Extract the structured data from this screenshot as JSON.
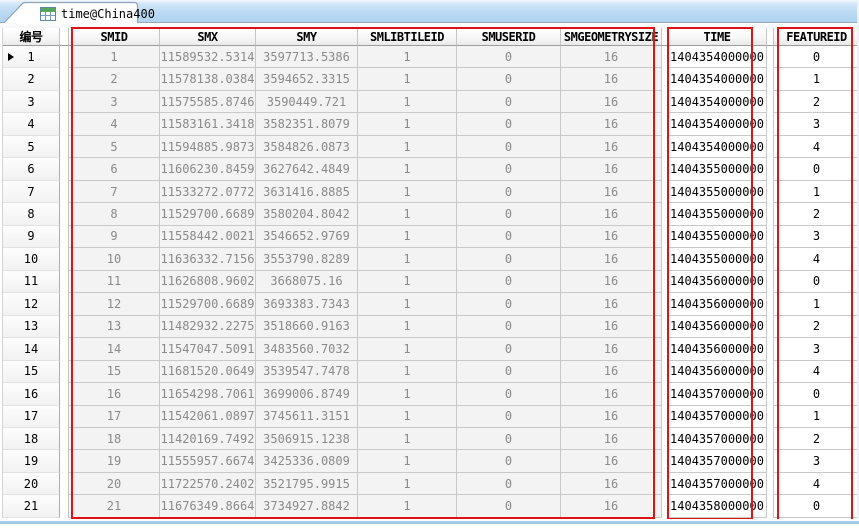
{
  "tab": {
    "title": "time@China400",
    "icon": "table-icon"
  },
  "grid": {
    "row_header_label": "编号",
    "columns": [
      {
        "key": "smid",
        "label": "SMID"
      },
      {
        "key": "smx",
        "label": "SMX"
      },
      {
        "key": "smy",
        "label": "SMY"
      },
      {
        "key": "smlibtileid",
        "label": "SMLIBTILEID"
      },
      {
        "key": "smuserid",
        "label": "SMUSERID"
      },
      {
        "key": "smgeometrysize",
        "label": "SMGEOMETRYSIZE"
      },
      {
        "key": "time",
        "label": "TIME"
      },
      {
        "key": "featureid",
        "label": "FEATUREID"
      }
    ],
    "selected_row": 1,
    "rows": [
      {
        "num": "1",
        "smid": "1",
        "smx": "11589532.5314",
        "smy": "3597713.5386",
        "smlibtileid": "1",
        "smuserid": "0",
        "smgeometrysize": "16",
        "time": "1404354000000",
        "featureid": "0"
      },
      {
        "num": "2",
        "smid": "2",
        "smx": "11578138.0384",
        "smy": "3594652.3315",
        "smlibtileid": "1",
        "smuserid": "0",
        "smgeometrysize": "16",
        "time": "1404354000000",
        "featureid": "1"
      },
      {
        "num": "3",
        "smid": "3",
        "smx": "11575585.8746",
        "smy": "3590449.721",
        "smlibtileid": "1",
        "smuserid": "0",
        "smgeometrysize": "16",
        "time": "1404354000000",
        "featureid": "2"
      },
      {
        "num": "4",
        "smid": "4",
        "smx": "11583161.3418",
        "smy": "3582351.8079",
        "smlibtileid": "1",
        "smuserid": "0",
        "smgeometrysize": "16",
        "time": "1404354000000",
        "featureid": "3"
      },
      {
        "num": "5",
        "smid": "5",
        "smx": "11594885.9873",
        "smy": "3584826.0873",
        "smlibtileid": "1",
        "smuserid": "0",
        "smgeometrysize": "16",
        "time": "1404354000000",
        "featureid": "4"
      },
      {
        "num": "6",
        "smid": "6",
        "smx": "11606230.8459",
        "smy": "3627642.4849",
        "smlibtileid": "1",
        "smuserid": "0",
        "smgeometrysize": "16",
        "time": "1404355000000",
        "featureid": "0"
      },
      {
        "num": "7",
        "smid": "7",
        "smx": "11533272.0772",
        "smy": "3631416.8885",
        "smlibtileid": "1",
        "smuserid": "0",
        "smgeometrysize": "16",
        "time": "1404355000000",
        "featureid": "1"
      },
      {
        "num": "8",
        "smid": "8",
        "smx": "11529700.6689",
        "smy": "3580204.8042",
        "smlibtileid": "1",
        "smuserid": "0",
        "smgeometrysize": "16",
        "time": "1404355000000",
        "featureid": "2"
      },
      {
        "num": "9",
        "smid": "9",
        "smx": "11558442.0021",
        "smy": "3546652.9769",
        "smlibtileid": "1",
        "smuserid": "0",
        "smgeometrysize": "16",
        "time": "1404355000000",
        "featureid": "3"
      },
      {
        "num": "10",
        "smid": "10",
        "smx": "11636332.7156",
        "smy": "3553790.8289",
        "smlibtileid": "1",
        "smuserid": "0",
        "smgeometrysize": "16",
        "time": "1404355000000",
        "featureid": "4"
      },
      {
        "num": "11",
        "smid": "11",
        "smx": "11626808.9602",
        "smy": "3668075.16",
        "smlibtileid": "1",
        "smuserid": "0",
        "smgeometrysize": "16",
        "time": "1404356000000",
        "featureid": "0"
      },
      {
        "num": "12",
        "smid": "12",
        "smx": "11529700.6689",
        "smy": "3693383.7343",
        "smlibtileid": "1",
        "smuserid": "0",
        "smgeometrysize": "16",
        "time": "1404356000000",
        "featureid": "1"
      },
      {
        "num": "13",
        "smid": "13",
        "smx": "11482932.2275",
        "smy": "3518660.9163",
        "smlibtileid": "1",
        "smuserid": "0",
        "smgeometrysize": "16",
        "time": "1404356000000",
        "featureid": "2"
      },
      {
        "num": "14",
        "smid": "14",
        "smx": "11547047.5091",
        "smy": "3483560.7032",
        "smlibtileid": "1",
        "smuserid": "0",
        "smgeometrysize": "16",
        "time": "1404356000000",
        "featureid": "3"
      },
      {
        "num": "15",
        "smid": "15",
        "smx": "11681520.0649",
        "smy": "3539547.7478",
        "smlibtileid": "1",
        "smuserid": "0",
        "smgeometrysize": "16",
        "time": "1404356000000",
        "featureid": "4"
      },
      {
        "num": "16",
        "smid": "16",
        "smx": "11654298.7061",
        "smy": "3699006.8749",
        "smlibtileid": "1",
        "smuserid": "0",
        "smgeometrysize": "16",
        "time": "1404357000000",
        "featureid": "0"
      },
      {
        "num": "17",
        "smid": "17",
        "smx": "11542061.0897",
        "smy": "3745611.3151",
        "smlibtileid": "1",
        "smuserid": "0",
        "smgeometrysize": "16",
        "time": "1404357000000",
        "featureid": "1"
      },
      {
        "num": "18",
        "smid": "18",
        "smx": "11420169.7492",
        "smy": "3506915.1238",
        "smlibtileid": "1",
        "smuserid": "0",
        "smgeometrysize": "16",
        "time": "1404357000000",
        "featureid": "2"
      },
      {
        "num": "19",
        "smid": "19",
        "smx": "11555957.6674",
        "smy": "3425336.0809",
        "smlibtileid": "1",
        "smuserid": "0",
        "smgeometrysize": "16",
        "time": "1404357000000",
        "featureid": "3"
      },
      {
        "num": "20",
        "smid": "20",
        "smx": "11722570.2402",
        "smy": "3521795.9915",
        "smlibtileid": "1",
        "smuserid": "0",
        "smgeometrysize": "16",
        "time": "1404357000000",
        "featureid": "4"
      },
      {
        "num": "21",
        "smid": "21",
        "smx": "11676349.8664",
        "smy": "3734927.8842",
        "smlibtileid": "1",
        "smuserid": "0",
        "smgeometrysize": "16",
        "time": "1404358000000",
        "featureid": "0"
      }
    ]
  },
  "annotations": {
    "color": "#dc1414",
    "boxes": [
      "sm-columns",
      "time-column",
      "featureid-column"
    ]
  },
  "colors": {
    "tabstrip_blue": "#b9d8f3",
    "readonly_cell_bg": "#f3f3f3",
    "readonly_text_gray": "#8a8a8a",
    "bottom_edge_blue": "#a6c9ea"
  }
}
